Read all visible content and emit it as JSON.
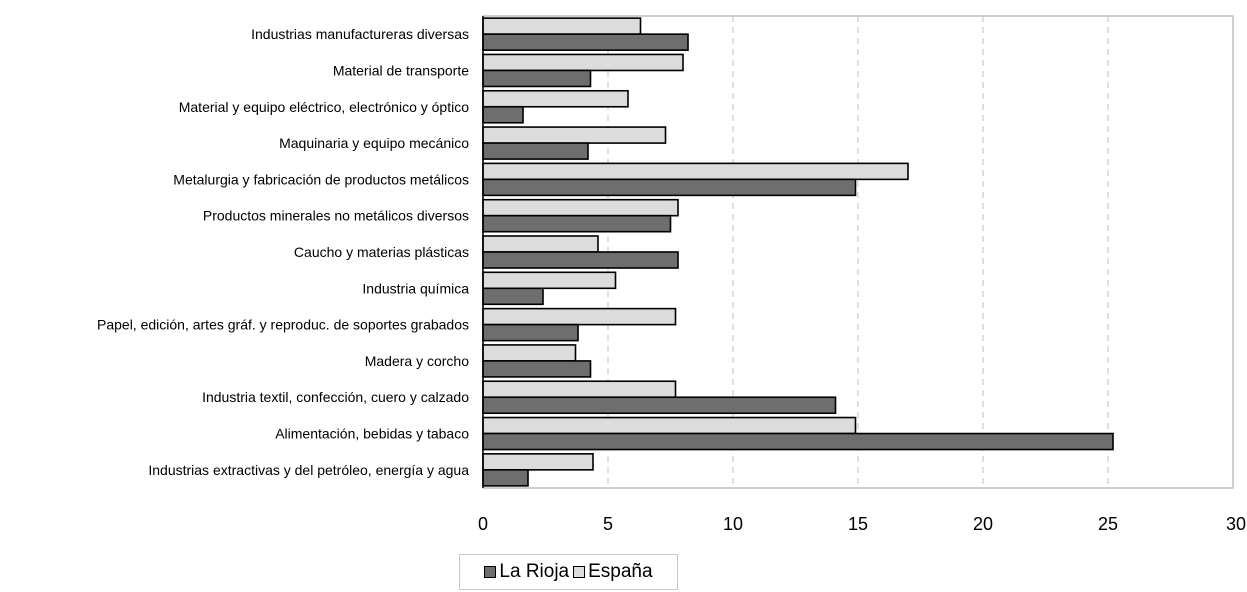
{
  "chart_data": {
    "type": "bar",
    "orientation": "horizontal",
    "categories": [
      "Industrias manufactureras diversas",
      "Material de transporte",
      "Material y equipo eléctrico, electrónico y óptico",
      "Maquinaria y equipo mecánico",
      "Metalurgia y fabricación de productos metálicos",
      "Productos minerales no metálicos diversos",
      "Caucho y materias plásticas",
      "Industria química",
      "Papel, edición, artes gráf. y reproduc. de soportes grabados",
      "Madera y corcho",
      "Industria textil, confección, cuero y calzado",
      "Alimentación, bebidas y tabaco",
      "Industrias extractivas y del petróleo, energía y agua"
    ],
    "series": [
      {
        "name": "España",
        "color": "#dcdcdc",
        "values": [
          6.3,
          8.0,
          5.8,
          7.3,
          17.0,
          7.8,
          4.6,
          5.3,
          7.7,
          3.7,
          7.7,
          14.9,
          4.4
        ]
      },
      {
        "name": "La Rioja",
        "color": "#6e6e6e",
        "values": [
          8.2,
          4.3,
          1.6,
          4.2,
          14.9,
          7.5,
          7.8,
          2.4,
          3.8,
          4.3,
          14.1,
          25.2,
          1.8
        ]
      }
    ],
    "xticks": [
      "0",
      "5",
      "10",
      "15",
      "20",
      "25",
      "30"
    ],
    "xlim": [
      0,
      30
    ],
    "title": "",
    "xlabel": "",
    "ylabel": "",
    "grid": "vertical dashed",
    "legend_position": "bottom",
    "legend": [
      {
        "label": "La Rioja",
        "color": "#6e6e6e"
      },
      {
        "label": "España",
        "color": "#dcdcdc"
      }
    ]
  }
}
